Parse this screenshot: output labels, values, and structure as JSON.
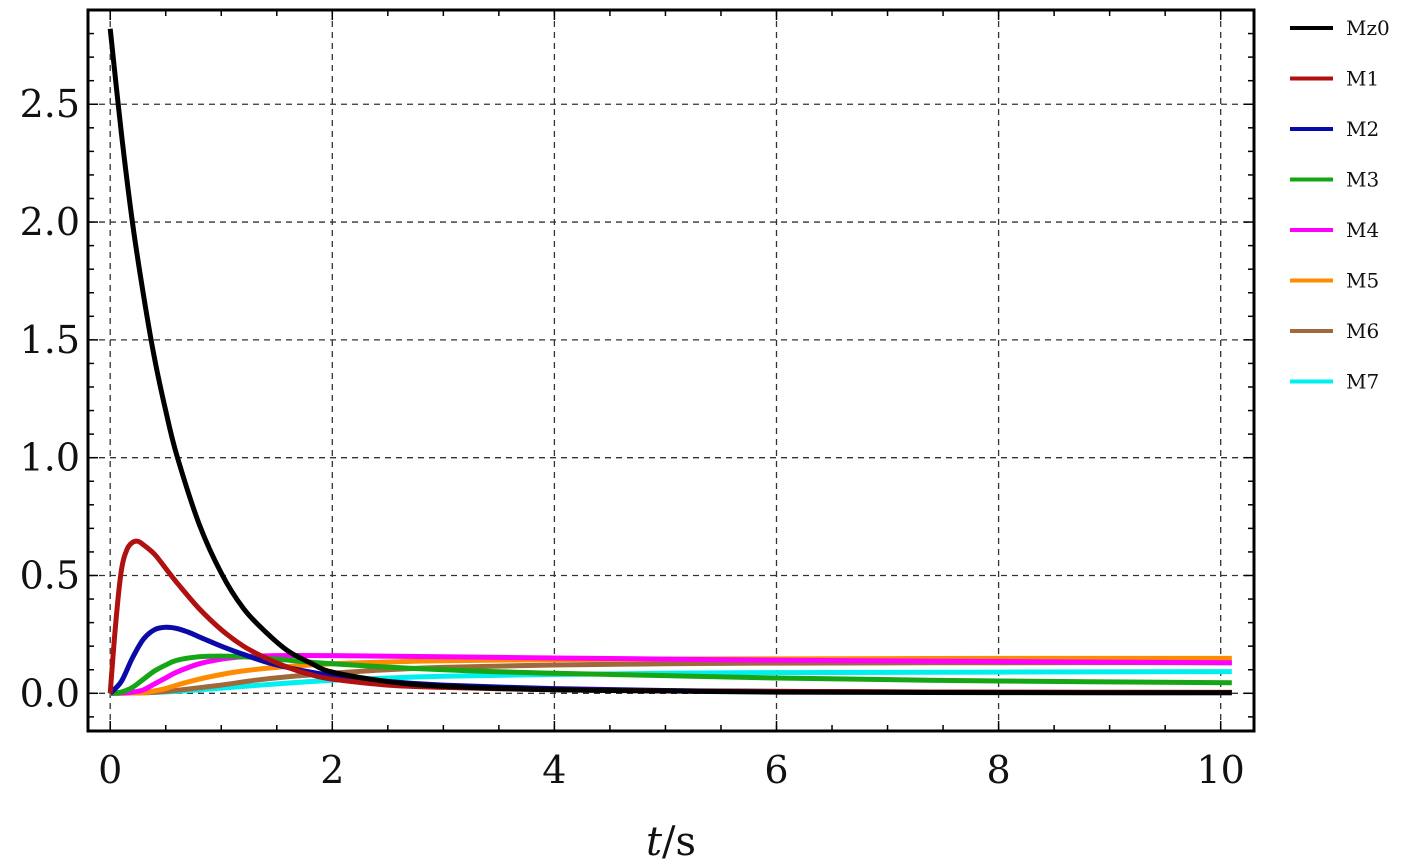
{
  "chart_data": {
    "type": "line",
    "title": "",
    "xlabel_italic": "t",
    "xlabel_unit": "/s",
    "ylabel": "",
    "xlim": [
      -0.2,
      10.3
    ],
    "ylim": [
      -0.16,
      2.9
    ],
    "xticks": [
      0,
      2,
      4,
      6,
      8,
      10
    ],
    "xtick_labels": [
      "0",
      "2",
      "4",
      "6",
      "8",
      "10"
    ],
    "yticks": [
      0.0,
      0.5,
      1.0,
      1.5,
      2.0,
      2.5
    ],
    "ytick_labels": [
      "0.0",
      "0.5",
      "1.0",
      "1.5",
      "2.0",
      "2.5"
    ],
    "grid": true,
    "legend_position": "outside-right",
    "series": [
      {
        "name": "Mz0",
        "color": "#000000",
        "x": [
          0,
          0.1,
          0.2,
          0.3,
          0.4,
          0.5,
          0.6,
          0.8,
          1.0,
          1.2,
          1.4,
          1.6,
          1.8,
          2.0,
          2.5,
          3.0,
          4.0,
          5.0,
          6.0,
          8.0,
          10.1
        ],
        "y": [
          2.82,
          2.38,
          2.0,
          1.69,
          1.42,
          1.2,
          1.01,
          0.72,
          0.51,
          0.36,
          0.26,
          0.18,
          0.13,
          0.09,
          0.05,
          0.03,
          0.015,
          0.01,
          0.005,
          0.003,
          0.002
        ]
      },
      {
        "name": "M1",
        "color": "#b01010",
        "x": [
          0,
          0.05,
          0.1,
          0.15,
          0.2,
          0.25,
          0.3,
          0.4,
          0.5,
          0.6,
          0.8,
          1.0,
          1.2,
          1.4,
          1.6,
          1.8,
          2.0,
          2.5,
          3.0,
          4.0,
          5.0,
          6.0,
          8.0,
          10.1
        ],
        "y": [
          0,
          0.3,
          0.52,
          0.61,
          0.64,
          0.645,
          0.63,
          0.59,
          0.53,
          0.47,
          0.36,
          0.27,
          0.2,
          0.15,
          0.11,
          0.08,
          0.06,
          0.035,
          0.025,
          0.015,
          0.01,
          0.008,
          0.005,
          0.004
        ]
      },
      {
        "name": "M2",
        "color": "#0a0aa8",
        "x": [
          0,
          0.1,
          0.2,
          0.3,
          0.4,
          0.5,
          0.6,
          0.7,
          0.8,
          1.0,
          1.2,
          1.5,
          2.0,
          2.5,
          3.0,
          4.0,
          5.0,
          6.0,
          8.0,
          10.1
        ],
        "y": [
          0,
          0.05,
          0.15,
          0.23,
          0.27,
          0.28,
          0.275,
          0.26,
          0.24,
          0.2,
          0.165,
          0.12,
          0.075,
          0.05,
          0.035,
          0.02,
          0.012,
          0.008,
          0.004,
          0.003
        ]
      },
      {
        "name": "M3",
        "color": "#15a515",
        "x": [
          0,
          0.1,
          0.2,
          0.3,
          0.4,
          0.5,
          0.6,
          0.8,
          1.0,
          1.2,
          1.5,
          2.0,
          3.0,
          4.0,
          5.0,
          6.0,
          8.0,
          10.1
        ],
        "y": [
          0,
          0.005,
          0.025,
          0.06,
          0.095,
          0.12,
          0.14,
          0.155,
          0.158,
          0.155,
          0.145,
          0.125,
          0.1,
          0.085,
          0.075,
          0.065,
          0.052,
          0.045
        ]
      },
      {
        "name": "M4",
        "color": "#ff00ff",
        "x": [
          0,
          0.2,
          0.3,
          0.4,
          0.5,
          0.6,
          0.8,
          1.0,
          1.2,
          1.5,
          2.0,
          3.0,
          4.0,
          5.0,
          6.0,
          8.0,
          10.1
        ],
        "y": [
          0,
          0.005,
          0.015,
          0.04,
          0.065,
          0.09,
          0.125,
          0.145,
          0.155,
          0.16,
          0.16,
          0.155,
          0.15,
          0.145,
          0.14,
          0.135,
          0.13
        ]
      },
      {
        "name": "M5",
        "color": "#ff8c00",
        "x": [
          0,
          0.3,
          0.4,
          0.5,
          0.6,
          0.8,
          1.0,
          1.2,
          1.5,
          2.0,
          2.5,
          3.0,
          4.0,
          5.0,
          6.0,
          8.0,
          10.1
        ],
        "y": [
          0,
          0.003,
          0.01,
          0.02,
          0.035,
          0.06,
          0.08,
          0.095,
          0.11,
          0.125,
          0.133,
          0.138,
          0.143,
          0.145,
          0.146,
          0.148,
          0.148
        ]
      },
      {
        "name": "M6",
        "color": "#a0693c",
        "x": [
          0,
          0.3,
          0.5,
          0.7,
          1.0,
          1.3,
          1.6,
          2.0,
          2.5,
          3.0,
          4.0,
          5.0,
          6.0,
          8.0,
          10.1
        ],
        "y": [
          0,
          0.002,
          0.008,
          0.018,
          0.035,
          0.055,
          0.07,
          0.085,
          0.1,
          0.11,
          0.12,
          0.125,
          0.128,
          0.13,
          0.13
        ]
      },
      {
        "name": "M7",
        "color": "#00f0f0",
        "x": [
          0,
          0.3,
          0.6,
          1.0,
          1.5,
          2.0,
          2.5,
          3.0,
          4.0,
          5.0,
          6.0,
          8.0,
          10.1
        ],
        "y": [
          0,
          0.002,
          0.008,
          0.022,
          0.04,
          0.055,
          0.065,
          0.072,
          0.08,
          0.085,
          0.088,
          0.09,
          0.092
        ]
      }
    ]
  }
}
